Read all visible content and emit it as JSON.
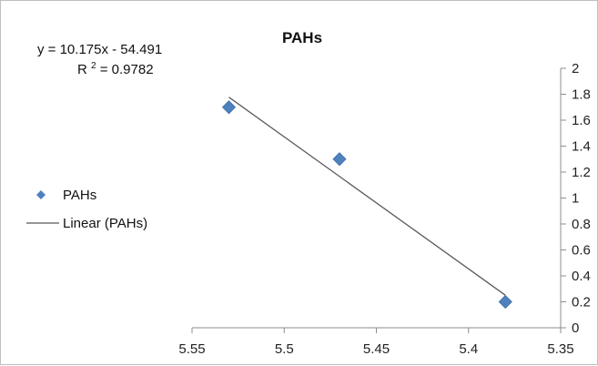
{
  "chart_data": {
    "type": "scatter",
    "title": "PAHs",
    "xlabel": "",
    "ylabel": "",
    "x_axis": {
      "min": 5.35,
      "max": 5.55,
      "reversed": true,
      "step": 0.05,
      "ticks": [
        "5.55",
        "5.5",
        "5.45",
        "5.4",
        "5.35"
      ]
    },
    "y_axis": {
      "min": 0,
      "max": 2,
      "step": 0.2,
      "position": "right",
      "ticks": [
        "0",
        "0.2",
        "0.4",
        "0.6",
        "0.8",
        "1",
        "1.2",
        "1.4",
        "1.6",
        "1.8",
        "2"
      ]
    },
    "grid": false,
    "series": [
      {
        "name": "PAHs",
        "marker": "diamond",
        "color": "#4f81bd",
        "points": [
          {
            "x": 5.53,
            "y": 1.7
          },
          {
            "x": 5.47,
            "y": 1.3
          },
          {
            "x": 5.38,
            "y": 0.2
          }
        ]
      }
    ],
    "trendline": {
      "name": "Linear (PAHs)",
      "type": "linear",
      "color": "#595959",
      "slope": 10.175,
      "intercept": -54.491,
      "equation": "y = 10.175x - 54.491",
      "r2_label": "R",
      "r2_sup": "2",
      "r2_value": " = 0.9782",
      "x_range": [
        5.38,
        5.53
      ]
    },
    "legend": {
      "placement": "left",
      "items": [
        {
          "label": "PAHs",
          "kind": "marker"
        },
        {
          "label": "Linear (PAHs)",
          "kind": "line"
        }
      ]
    }
  }
}
